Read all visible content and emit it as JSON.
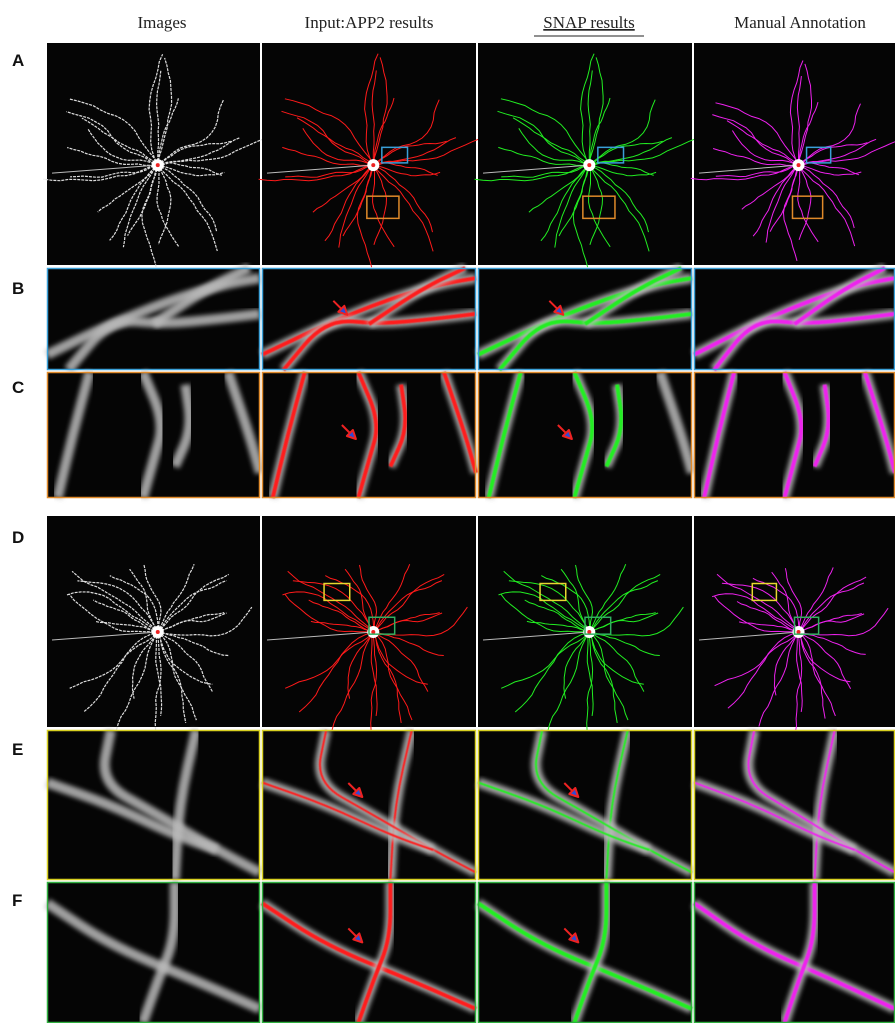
{
  "column_headers": [
    "Images",
    "Input:APP2 results",
    "SNAP results",
    "Manual Annotation"
  ],
  "row_labels": [
    "A",
    "B",
    "C",
    "D",
    "E",
    "F"
  ]
}
